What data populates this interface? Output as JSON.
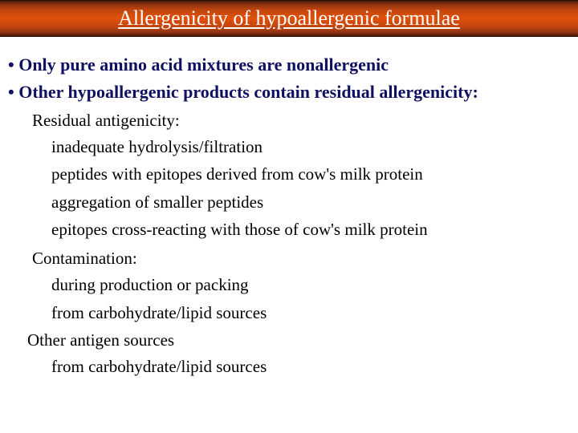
{
  "title": "Allergenicity of hypoallergenic formulae",
  "bullet1": "• Only pure amino acid mixtures are nonallergenic",
  "bullet2": "• Other hypoallergenic products contain residual allergenicity:",
  "section1": {
    "heading": "Residual antigenicity:",
    "items": [
      "inadequate hydrolysis/filtration",
      "peptides with epitopes derived from cow's milk protein",
      "aggregation of smaller peptides",
      "epitopes cross-reacting with those of cow's milk protein"
    ]
  },
  "section2": {
    "heading": "Contamination:",
    "items": [
      "during production or packing",
      "from carbohydrate/lipid sources"
    ]
  },
  "section3": {
    "heading": "Other antigen sources",
    "items": [
      "from carbohydrate/lipid sources"
    ]
  },
  "colors": {
    "bullet_text": "#101060",
    "body_text": "#000000",
    "title_text": "#ffffff",
    "bar_gradient_mid": "#e0500a",
    "bar_gradient_edge": "#4a1a0a"
  },
  "fonts": {
    "family": "Times New Roman",
    "title_size_pt": 20,
    "bullet_size_pt": 17,
    "body_size_pt": 16
  }
}
